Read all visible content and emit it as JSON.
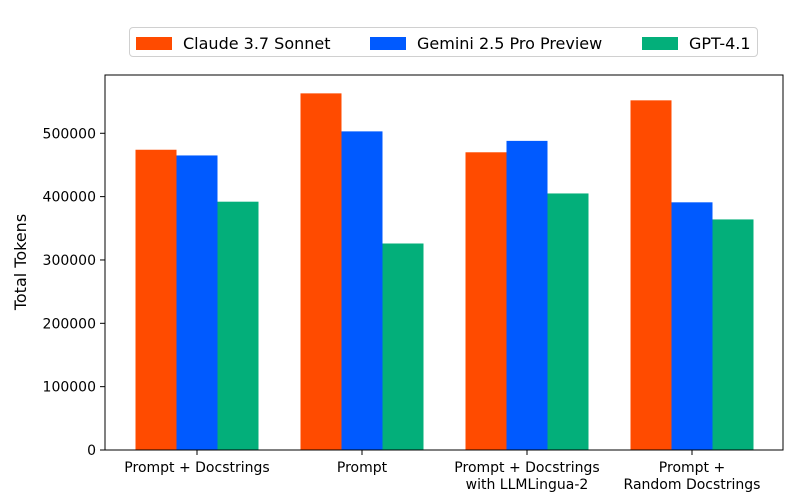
{
  "chart_data": {
    "type": "bar",
    "title": "",
    "xlabel": "",
    "ylabel": "Total Tokens",
    "ylim": [
      0,
      592000
    ],
    "yticks": [
      0,
      100000,
      200000,
      300000,
      400000,
      500000
    ],
    "ytick_labels": [
      "0",
      "100000",
      "200000",
      "300000",
      "400000",
      "500000"
    ],
    "categories": [
      [
        "Prompt + Docstrings"
      ],
      [
        "Prompt"
      ],
      [
        "Prompt + Docstrings",
        "with LLMLingua-2"
      ],
      [
        "Prompt +",
        "Random Docstrings"
      ]
    ],
    "series": [
      {
        "name": "Claude 3.7 Sonnet",
        "color": "#ff4b00",
        "values": [
          474000,
          563000,
          470000,
          552000
        ]
      },
      {
        "name": "Gemini 2.5 Pro Preview",
        "color": "#005aff",
        "values": [
          465000,
          503000,
          488000,
          391000
        ]
      },
      {
        "name": "GPT-4.1",
        "color": "#03af7a",
        "values": [
          392000,
          326000,
          405000,
          364000
        ]
      }
    ],
    "grid": false,
    "legend_position": "top-center"
  }
}
